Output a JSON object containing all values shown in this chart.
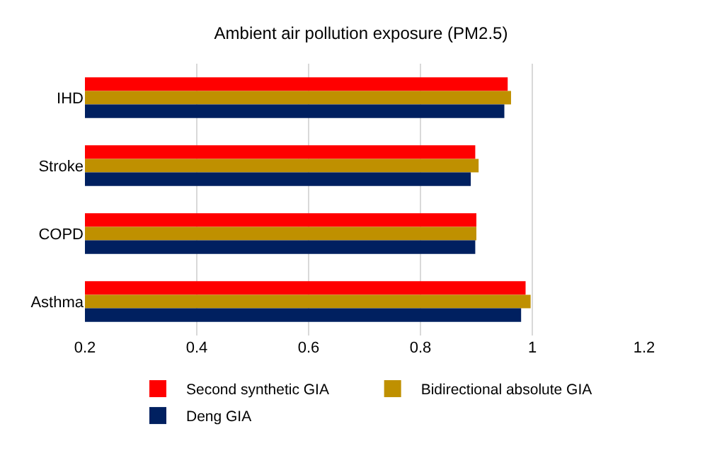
{
  "chart_data": {
    "type": "bar",
    "orientation": "horizontal",
    "title": "Ambient air pollution exposure (PM2.5)",
    "categories": [
      "IHD",
      "Stroke",
      "COPD",
      "Asthma"
    ],
    "series": [
      {
        "name": "Second synthetic GIA",
        "color": "#ff0000",
        "values": [
          0.956,
          0.898,
          0.9,
          0.988
        ]
      },
      {
        "name": "Bidirectional absolute GIA",
        "color": "#bf9000",
        "values": [
          0.962,
          0.904,
          0.9,
          0.997
        ]
      },
      {
        "name": "Deng GIA",
        "color": "#002060",
        "values": [
          0.95,
          0.89,
          0.898,
          0.98
        ]
      }
    ],
    "xlim": [
      0.2,
      1.2
    ],
    "xticks": [
      0.2,
      0.4,
      0.6,
      0.8,
      1,
      1.2
    ],
    "grid": "x",
    "legend": "bottom"
  }
}
